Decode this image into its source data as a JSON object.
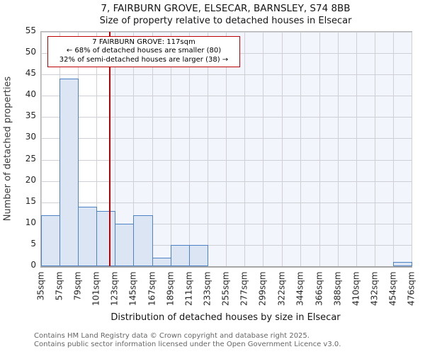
{
  "chart_data": {
    "type": "bar",
    "title": "7, FAIRBURN GROVE, ELSECAR, BARNSLEY, S74 8BB",
    "subtitle": "Size of property relative to detached houses in Elsecar",
    "xlabel": "Distribution of detached houses by size in Elsecar",
    "ylabel": "Number of detached properties",
    "x_unit": "sqm",
    "bin_edges": [
      35,
      57,
      79,
      101,
      123,
      145,
      167,
      189,
      211,
      233,
      255,
      277,
      299,
      322,
      344,
      366,
      388,
      410,
      432,
      454,
      476
    ],
    "values": [
      12,
      44,
      14,
      13,
      10,
      12,
      2,
      5,
      5,
      0,
      0,
      0,
      0,
      0,
      0,
      0,
      0,
      0,
      0,
      1
    ],
    "ylim": [
      0,
      55
    ],
    "ytick_step": 5,
    "grid": true,
    "legend": "none",
    "marker_value": 117,
    "annotation": {
      "line1": "7 FAIRBURN GROVE: 117sqm",
      "line2": "← 68% of detached houses are smaller (80)",
      "line3": "32% of semi-detached houses are larger (38) →"
    },
    "colors": {
      "bar_fill": "#dbe5f4",
      "bar_border": "#4d82c4",
      "marker_line": "#c00000",
      "annotation_border": "#c00000",
      "highlight_region": "#f2f5fc",
      "gridline": "#cfcfd6"
    }
  },
  "footer": {
    "line1": "Contains HM Land Registry data © Crown copyright and database right 2025.",
    "line2": "Contains public sector information licensed under the Open Government Licence v3.0."
  }
}
